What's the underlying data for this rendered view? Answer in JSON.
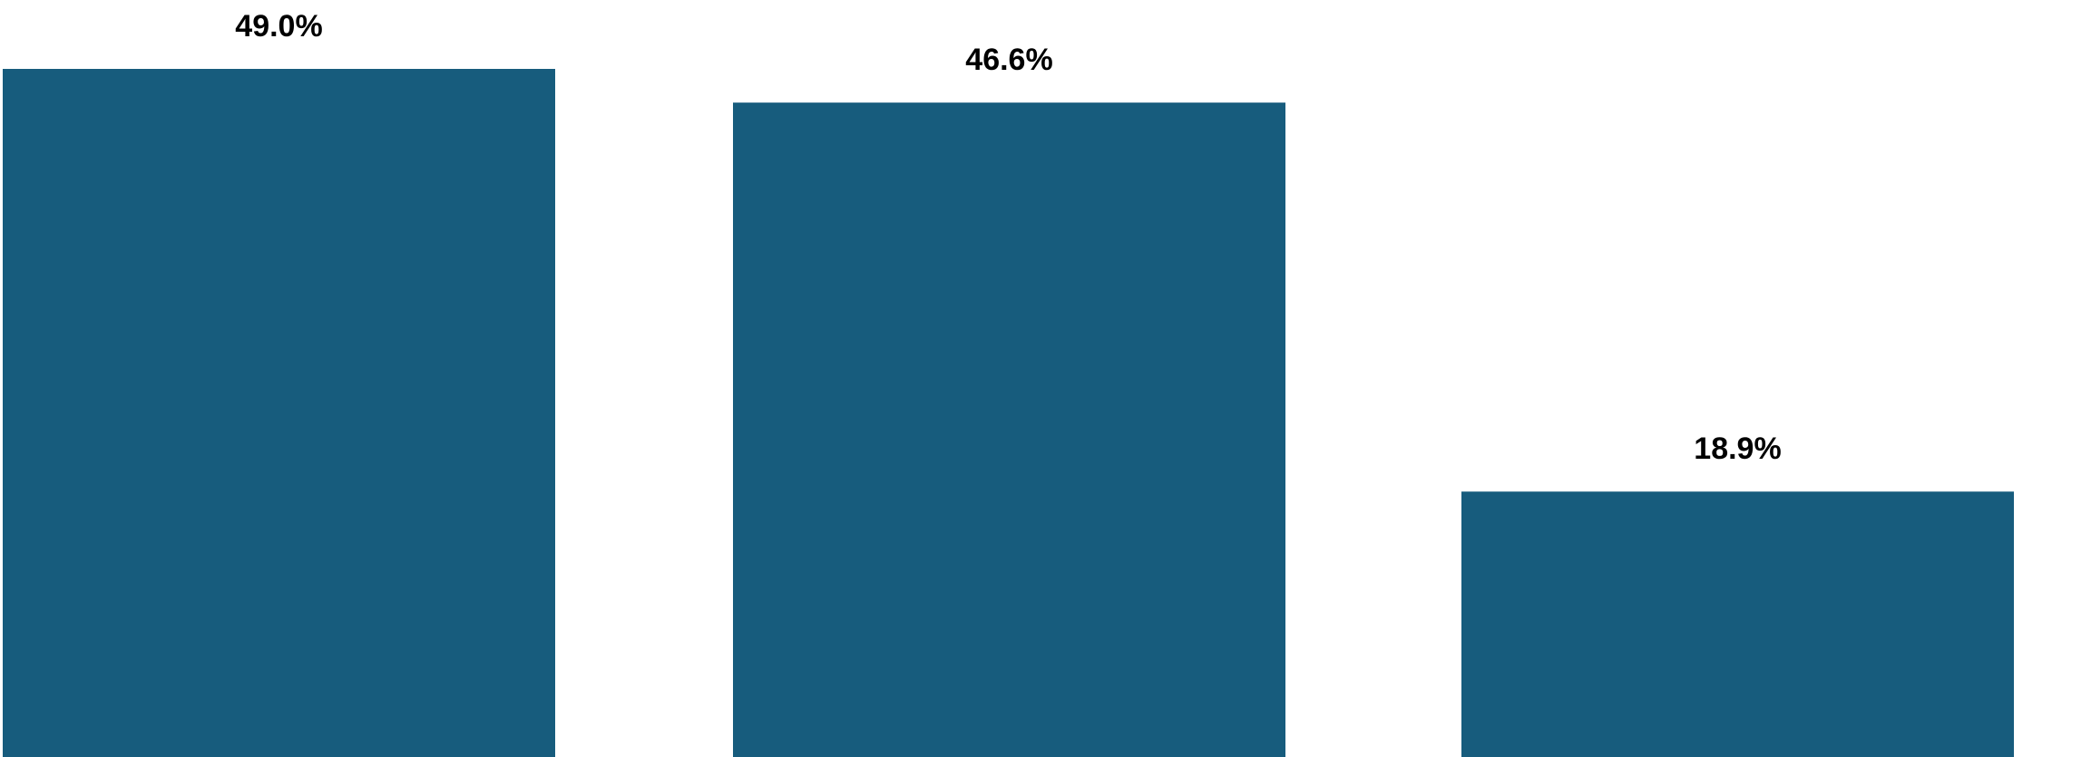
{
  "chart_data": {
    "type": "bar",
    "categories": [
      "",
      "",
      ""
    ],
    "values": [
      49.0,
      46.6,
      18.9
    ],
    "value_labels": [
      "49.0%",
      "46.6%",
      "18.9%"
    ],
    "title": "",
    "xlabel": "",
    "ylabel": "",
    "ylim": [
      0,
      49.0
    ],
    "grid": false,
    "legend": "none",
    "bar_color": "#175C7D"
  }
}
